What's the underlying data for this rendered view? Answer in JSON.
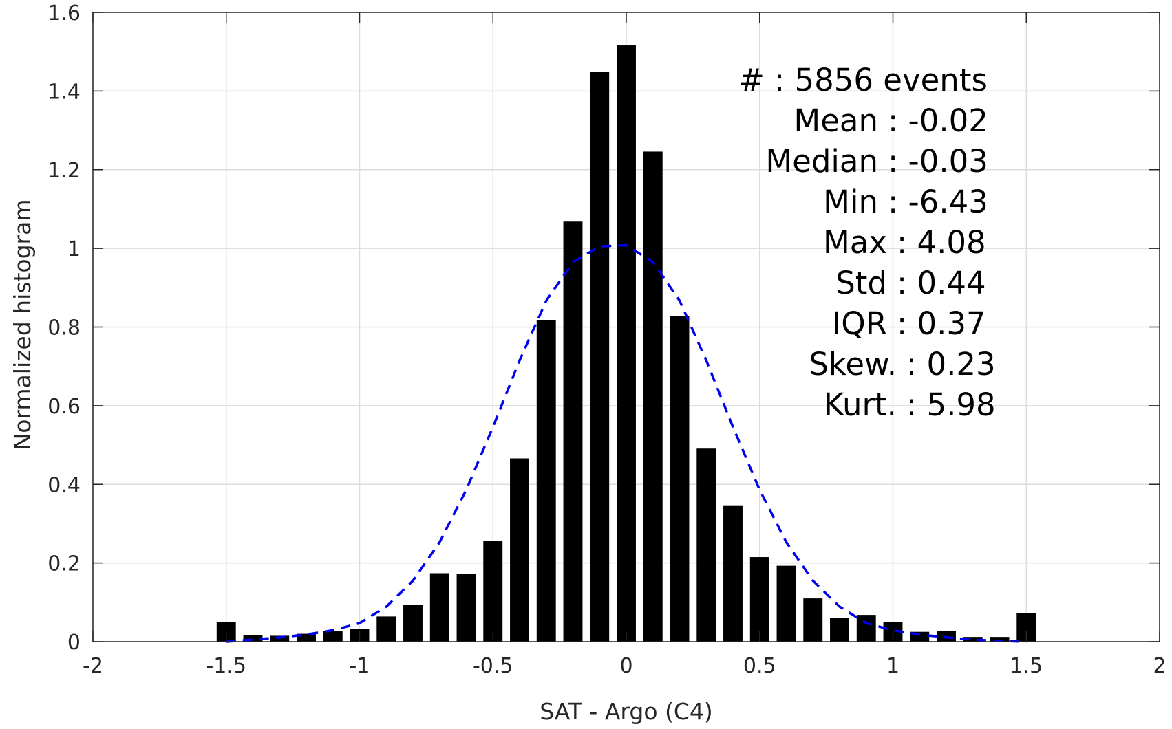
{
  "chart_data": {
    "type": "bar",
    "xlabel": "SAT - Argo (C4)",
    "ylabel": "Normalized histogram",
    "xlim": [
      -2,
      2
    ],
    "ylim": [
      0,
      1.6
    ],
    "xticks": [
      -2,
      -1.5,
      -1,
      -0.5,
      0,
      0.5,
      1,
      1.5,
      2
    ],
    "xtick_labels": [
      "-2",
      "-1.5",
      "-1",
      "-0.5",
      "0",
      "0.5",
      "1",
      "1.5",
      "2"
    ],
    "yticks": [
      0,
      0.2,
      0.4,
      0.6,
      0.8,
      1,
      1.2,
      1.4,
      1.6
    ],
    "ytick_labels": [
      "0",
      "0.2",
      "0.4",
      "0.6",
      "0.8",
      "1",
      "1.2",
      "1.4",
      "1.6"
    ],
    "grid": true,
    "bin_width": 0.1,
    "bar_color": "#000000",
    "series": [
      {
        "type": "bar",
        "x": [
          -1.5,
          -1.4,
          -1.3,
          -1.2,
          -1.1,
          -1.0,
          -0.9,
          -0.8,
          -0.7,
          -0.6,
          -0.5,
          -0.4,
          -0.3,
          -0.2,
          -0.1,
          0.0,
          0.1,
          0.2,
          0.3,
          0.4,
          0.5,
          0.6,
          0.7,
          0.8,
          0.9,
          1.0,
          1.1,
          1.2,
          1.3,
          1.4,
          1.5
        ],
        "values": [
          0.05,
          0.017,
          0.015,
          0.02,
          0.027,
          0.032,
          0.064,
          0.093,
          0.174,
          0.172,
          0.256,
          0.466,
          0.818,
          1.068,
          1.448,
          1.516,
          1.246,
          0.828,
          0.491,
          0.345,
          0.215,
          0.193,
          0.11,
          0.061,
          0.068,
          0.05,
          0.025,
          0.028,
          0.012,
          0.012,
          0.073
        ]
      },
      {
        "type": "line",
        "style": "dashed",
        "color": "#0000ee",
        "x": [
          -1.5,
          -1.4,
          -1.3,
          -1.2,
          -1.1,
          -1.0,
          -0.9,
          -0.8,
          -0.7,
          -0.6,
          -0.5,
          -0.4,
          -0.3,
          -0.2,
          -0.1,
          0.0,
          0.1,
          0.2,
          0.3,
          0.4,
          0.5,
          0.6,
          0.7,
          0.8,
          0.9,
          1.0,
          1.1,
          1.2,
          1.3,
          1.4,
          1.5
        ],
        "values": [
          0.0,
          0.005,
          0.011,
          0.018,
          0.029,
          0.047,
          0.089,
          0.155,
          0.253,
          0.386,
          0.546,
          0.715,
          0.867,
          0.965,
          1.005,
          1.008,
          0.965,
          0.867,
          0.715,
          0.546,
          0.386,
          0.253,
          0.155,
          0.089,
          0.047,
          0.029,
          0.018,
          0.011,
          0.005,
          0.002,
          0.0
        ]
      }
    ],
    "annotation_lines": [
      {
        "text": "#  : 5856 events",
        "anchor_char": ":"
      },
      {
        "text": "Mean : -0.02",
        "anchor_char": ":"
      },
      {
        "text": "Median : -0.03",
        "anchor_char": ":"
      },
      {
        "text": "Min : -6.43",
        "anchor_char": ":"
      },
      {
        "text": "Max : 4.08",
        "anchor_char": ":"
      },
      {
        "text": "Std : 0.44",
        "anchor_char": ":"
      },
      {
        "text": "IQR : 0.37",
        "anchor_char": ":"
      },
      {
        "text": "Skew. : 0.23",
        "anchor_char": ":"
      },
      {
        "text": "Kurt. : 5.98",
        "anchor_char": ":"
      }
    ]
  }
}
